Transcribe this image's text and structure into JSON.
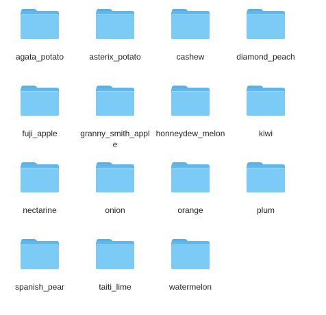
{
  "folders": [
    {
      "label": "agata_potato",
      "icon": "folder-icon"
    },
    {
      "label": "asterix_potato",
      "icon": "folder-icon"
    },
    {
      "label": "cashew",
      "icon": "folder-icon"
    },
    {
      "label": "diamond_peach",
      "icon": "folder-icon"
    },
    {
      "label": "fuji_apple",
      "icon": "folder-icon"
    },
    {
      "label": "granny_smith_apple",
      "icon": "folder-icon"
    },
    {
      "label": "honneydew_melon",
      "icon": "folder-icon"
    },
    {
      "label": "kiwi",
      "icon": "folder-icon"
    },
    {
      "label": "nectarine",
      "icon": "folder-icon"
    },
    {
      "label": "onion",
      "icon": "folder-icon"
    },
    {
      "label": "orange",
      "icon": "folder-icon"
    },
    {
      "label": "plum",
      "icon": "folder-icon"
    },
    {
      "label": "spanish_pear",
      "icon": "folder-icon"
    },
    {
      "label": "taiti_lime",
      "icon": "folder-icon"
    },
    {
      "label": "watermelon",
      "icon": "folder-icon"
    }
  ],
  "colors": {
    "folder_back": "#5cb8ef",
    "folder_front": "#7ccbf7",
    "folder_tab": "#56b1e9",
    "label_text": "#262626"
  }
}
